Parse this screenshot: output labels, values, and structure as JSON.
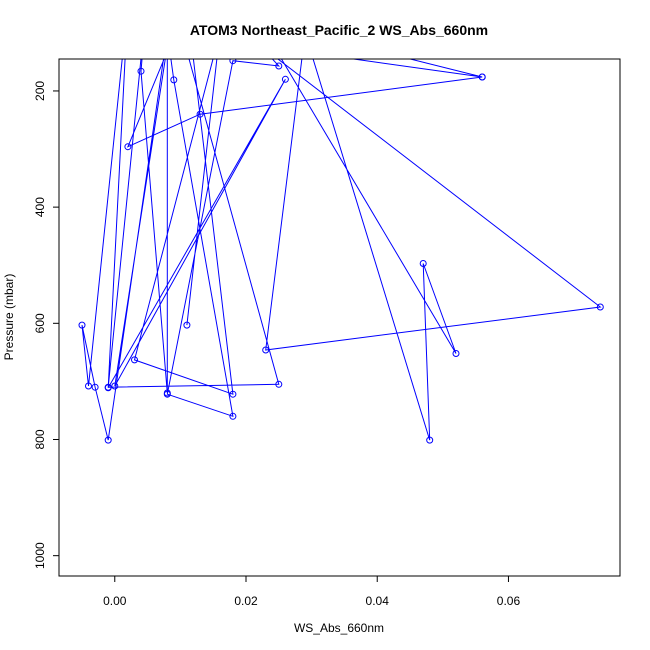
{
  "chart_data": {
    "type": "line",
    "title": "ATOM3 Northeast_Pacific_2 WS_Abs_660nm",
    "xlabel": "WS_Abs_660nm",
    "ylabel": "Pressure (mbar)",
    "xlim": [
      -0.0085,
      0.077
    ],
    "ylim": [
      1035,
      145
    ],
    "y_reversed": true,
    "x_ticks": [
      0.0,
      0.02,
      0.04,
      0.06
    ],
    "x_tick_labels": [
      "0.00",
      "0.02",
      "0.04",
      "0.06"
    ],
    "y_ticks": [
      200,
      400,
      600,
      800,
      1000
    ],
    "y_tick_labels": [
      "200",
      "400",
      "600",
      "800",
      "1000"
    ],
    "grid": false,
    "series": [
      {
        "color": "#0000ff",
        "marker": "open-circle",
        "points": [
          [
            0.011,
            603
          ],
          [
            0.016,
            100
          ],
          [
            0.003,
            663
          ],
          [
            0.018,
            722
          ],
          [
            0.011,
            50
          ],
          [
            0.002,
            296
          ],
          [
            0.013,
            240
          ],
          [
            0.056,
            176
          ],
          [
            0.008,
            100
          ],
          [
            -0.001,
            801
          ],
          [
            -0.003,
            710
          ],
          [
            -0.005,
            603
          ],
          [
            -0.004,
            708
          ],
          [
            0.002,
            50
          ],
          [
            -0.001,
            711
          ],
          [
            0.026,
            180
          ],
          [
            0.0,
            708
          ],
          [
            0.009,
            50
          ],
          [
            0.025,
            705
          ],
          [
            -0.001,
            710
          ],
          [
            0.005,
            30
          ],
          [
            0.004,
            166
          ],
          [
            0.008,
            720
          ],
          [
            0.008,
            100
          ],
          [
            0.009,
            181
          ],
          [
            0.018,
            760
          ],
          [
            0.008,
            722
          ],
          [
            0.018,
            148
          ],
          [
            0.025,
            157
          ],
          [
            0.022,
            120
          ],
          [
            0.074,
            572
          ],
          [
            0.023,
            646
          ],
          [
            0.029,
            100
          ],
          [
            0.048,
            801
          ],
          [
            0.047,
            497
          ],
          [
            0.052,
            652
          ],
          [
            0.022,
            80
          ],
          [
            0.056,
            176
          ]
        ]
      }
    ]
  }
}
